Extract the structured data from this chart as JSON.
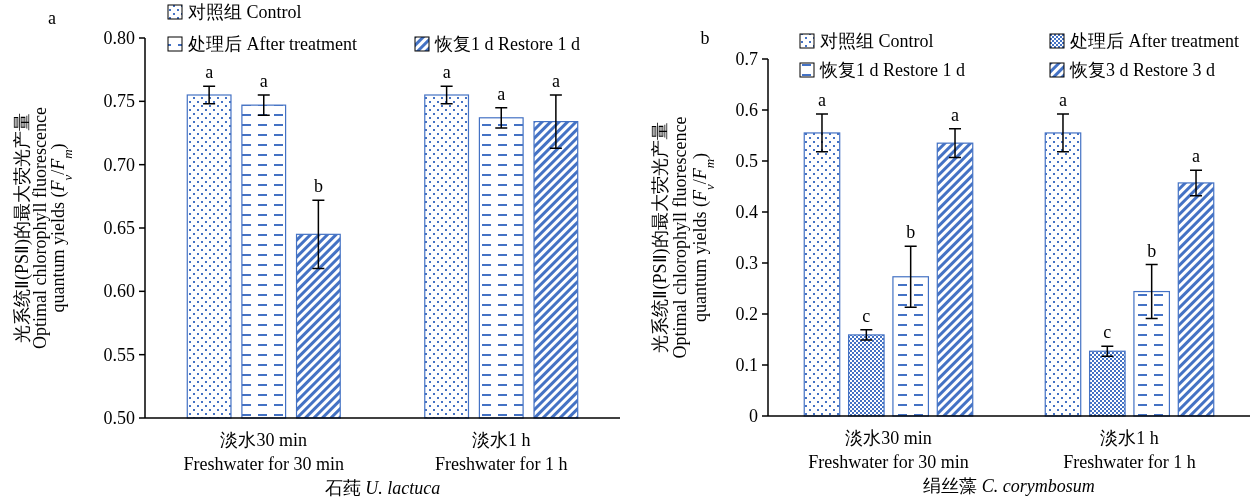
{
  "chart_data": [
    {
      "type": "bar",
      "categories": [
        "淡水30 min\nFreshwater for 30 min",
        "淡水1 h\nFreshwater for 1 h"
      ],
      "series": [
        {
          "name": "对照组 Control",
          "color": "#4472c4",
          "values": [
            0.755,
            0.755
          ],
          "errors": [
            0.007,
            0.007
          ]
        },
        {
          "name": "处理后 After treatment",
          "color": "#4472c4",
          "values": [
            0.747,
            0.737
          ],
          "errors": [
            0.008,
            0.008
          ]
        },
        {
          "name": "恢复1 d Restore 1 d",
          "color": "#4472c4",
          "values": [
            0.645,
            0.734
          ],
          "errors": [
            0.027,
            0.021
          ]
        }
      ],
      "ylim": [
        0.5,
        0.8
      ],
      "yticks": [
        {
          "value": 0.5,
          "label": "0.50"
        },
        0.55,
        {
          "value": 0.6,
          "label": "0.60"
        },
        0.65,
        {
          "value": 0.7,
          "label": "0.70"
        },
        0.75,
        {
          "value": 0.8,
          "label": "0.80"
        }
      ],
      "xlabel": "石莼 *U. lactuca*",
      "ylabel": "光系统Ⅱ(PSⅡ)的最大荧光产量\nOptimal chlorophyll fluorescence\nquantum yields (*F*$_{v}$/*F*$_{m}$)",
      "legend": "top",
      "grid": false,
      "annotations": [
        "a",
        "a",
        "a",
        "b",
        "a",
        "a",
        "a"
      ]
    },
    {
      "type": "bar",
      "categories": [
        "淡水30 min\nFreshwater for 30 min",
        "淡水1 h\nFreshwater for 1 h"
      ],
      "series": [
        {
          "name": "对照组 Control",
          "color": "#4472c4",
          "values": [
            0.555,
            0.555
          ],
          "errors": [
            0.037,
            0.037
          ]
        },
        {
          "name": "处理后 After treatment",
          "color": "#4472c4",
          "values": [
            0.159,
            0.127
          ],
          "errors": [
            0.01,
            0.01
          ]
        },
        {
          "name": "恢复1 d Restore 1 d",
          "color": "#4472c4",
          "values": [
            0.273,
            0.244
          ],
          "errors": [
            0.06,
            0.053
          ]
        },
        {
          "name": "恢复3 d Restore 3 d",
          "color": "#4472c4",
          "values": [
            0.535,
            0.457
          ],
          "errors": [
            0.028,
            0.025
          ]
        }
      ],
      "ylim": [
        0,
        0.7
      ],
      "yticks": [
        0,
        0.1,
        0.2,
        0.3,
        0.4,
        0.5,
        0.6,
        0.7
      ],
      "xlabel": "绢丝藻 *C. corymbosum*",
      "ylabel": "光系统Ⅱ(PSⅡ)的最大荧光产量\nOptimal chlorophyll fluorescence\nquantum yields (*F*$_{v}$/*F*$_{m}$)",
      "legend": "top",
      "grid": false,
      "annotations": [
        "b",
        "a",
        "c",
        "b",
        "a",
        "a",
        "c",
        "b",
        "a"
      ]
    }
  ]
}
